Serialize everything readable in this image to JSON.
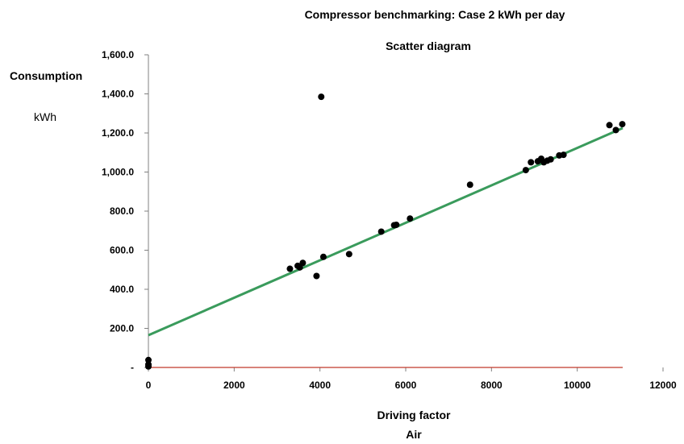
{
  "chart_data": {
    "type": "scatter",
    "title": "Compressor benchmarking: Case 2 kWh per day",
    "subtitle": "Scatter diagram",
    "ylabel": "Consumption",
    "yunit": "kWh",
    "xlabel": "Driving factor",
    "xunit": "Air",
    "xlim": [
      0,
      12000
    ],
    "ylim": [
      0,
      1600
    ],
    "x_ticks": [
      0,
      2000,
      4000,
      6000,
      8000,
      10000,
      12000
    ],
    "x_tick_labels": [
      "0",
      "2000",
      "4000",
      "6000",
      "8000",
      "10000",
      "12000"
    ],
    "y_ticks": [
      0,
      200,
      400,
      600,
      800,
      1000,
      1200,
      1400,
      1600
    ],
    "y_tick_labels": [
      "-",
      "200.0",
      "400.0",
      "600.0",
      "800.0",
      "1,000.0",
      "1,200.0",
      "1,400.0",
      "1,600.0"
    ],
    "grid": false,
    "legend": "none",
    "point_color": "#000000",
    "trendline": {
      "color": "#3a9b5c",
      "x": [
        0,
        11060
      ],
      "y": [
        165,
        1225
      ]
    },
    "baseline": {
      "color": "#c0392b",
      "y": 0
    },
    "points": [
      {
        "x": 0,
        "y": 5
      },
      {
        "x": 0,
        "y": 15
      },
      {
        "x": 0,
        "y": 38
      },
      {
        "x": 3300,
        "y": 505
      },
      {
        "x": 3480,
        "y": 520
      },
      {
        "x": 3530,
        "y": 512
      },
      {
        "x": 3600,
        "y": 535
      },
      {
        "x": 3920,
        "y": 468
      },
      {
        "x": 4030,
        "y": 1385
      },
      {
        "x": 4080,
        "y": 566
      },
      {
        "x": 4680,
        "y": 580
      },
      {
        "x": 5430,
        "y": 695
      },
      {
        "x": 5730,
        "y": 728
      },
      {
        "x": 5780,
        "y": 730
      },
      {
        "x": 6100,
        "y": 762
      },
      {
        "x": 7500,
        "y": 935
      },
      {
        "x": 8800,
        "y": 1010
      },
      {
        "x": 8920,
        "y": 1050
      },
      {
        "x": 9080,
        "y": 1055
      },
      {
        "x": 9160,
        "y": 1068
      },
      {
        "x": 9220,
        "y": 1050
      },
      {
        "x": 9300,
        "y": 1058
      },
      {
        "x": 9380,
        "y": 1065
      },
      {
        "x": 9580,
        "y": 1085
      },
      {
        "x": 9680,
        "y": 1088
      },
      {
        "x": 10750,
        "y": 1240
      },
      {
        "x": 10900,
        "y": 1215
      },
      {
        "x": 11050,
        "y": 1245
      }
    ]
  }
}
